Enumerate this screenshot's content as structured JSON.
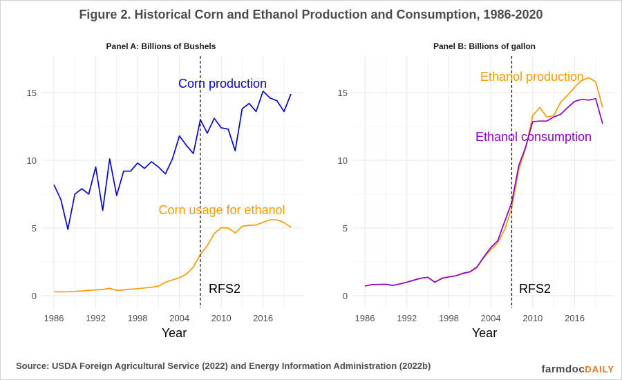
{
  "figure": {
    "title": "Figure 2. Historical Corn and Ethanol Production and Consumption, 1986-2020",
    "source": "Source: USDA Foreign Agricultural Service (2022) and Energy Information Administration (2022b)",
    "brand_main": "farmdoc",
    "brand_accent": "DAILY"
  },
  "colors": {
    "blue": "#0000e0",
    "orange": "#ff9900",
    "purple": "#8a00d4",
    "grid": "#ebebeb",
    "text": "#4d4d4d"
  },
  "chart_data": [
    {
      "type": "line",
      "title": "Panel A: Billions of Bushels",
      "xlabel": "Year",
      "ylabel": "",
      "xlim": [
        1986,
        2020
      ],
      "ylim": [
        0,
        17.5
      ],
      "x_ticks": [
        1986,
        1992,
        1998,
        2004,
        2010,
        2016
      ],
      "y_ticks": [
        0,
        5,
        10,
        15
      ],
      "grid": true,
      "vline": {
        "x": 2007,
        "label": "RFS2"
      },
      "series": [
        {
          "name": "Corn production",
          "color": "#0000e0",
          "x": [
            1986,
            1987,
            1988,
            1989,
            1990,
            1991,
            1992,
            1993,
            1994,
            1995,
            1996,
            1997,
            1998,
            1999,
            2000,
            2001,
            2002,
            2003,
            2004,
            2005,
            2006,
            2007,
            2008,
            2009,
            2010,
            2011,
            2012,
            2013,
            2014,
            2015,
            2016,
            2017,
            2018,
            2019,
            2020
          ],
          "y": [
            8.2,
            7.1,
            4.9,
            7.5,
            7.9,
            7.5,
            9.5,
            6.3,
            10.1,
            7.4,
            9.2,
            9.2,
            9.8,
            9.4,
            9.9,
            9.5,
            9.0,
            10.1,
            11.8,
            11.1,
            10.5,
            13.0,
            12.0,
            13.1,
            12.4,
            12.3,
            10.7,
            13.8,
            14.2,
            13.6,
            15.1,
            14.6,
            14.4,
            13.6,
            14.9
          ]
        },
        {
          "name": "Corn usage for ethanol",
          "color": "#ff9900",
          "x": [
            1986,
            1987,
            1988,
            1989,
            1990,
            1991,
            1992,
            1993,
            1994,
            1995,
            1996,
            1997,
            1998,
            1999,
            2000,
            2001,
            2002,
            2003,
            2004,
            2005,
            2006,
            2007,
            2008,
            2009,
            2010,
            2011,
            2012,
            2013,
            2014,
            2015,
            2016,
            2017,
            2018,
            2019,
            2020
          ],
          "y": [
            0.29,
            0.28,
            0.29,
            0.32,
            0.35,
            0.4,
            0.43,
            0.46,
            0.55,
            0.4,
            0.43,
            0.48,
            0.52,
            0.57,
            0.63,
            0.71,
            1.0,
            1.17,
            1.32,
            1.6,
            2.12,
            3.05,
            3.7,
            4.59,
            5.02,
            5.0,
            4.64,
            5.12,
            5.2,
            5.22,
            5.43,
            5.6,
            5.6,
            5.4,
            5.05
          ]
        }
      ]
    },
    {
      "type": "line",
      "title": "Panel B: Billions of gallon",
      "xlabel": "Year",
      "ylabel": "",
      "xlim": [
        1986,
        2020
      ],
      "ylim": [
        0,
        17.5
      ],
      "x_ticks": [
        1986,
        1992,
        1998,
        2004,
        2010,
        2016
      ],
      "y_ticks": [
        0,
        5,
        10,
        15
      ],
      "grid": true,
      "vline": {
        "x": 2007,
        "label": "RFS2"
      },
      "series": [
        {
          "name": "Ethanol production",
          "color": "#ff9900",
          "x": [
            1986,
            1987,
            1988,
            1989,
            1990,
            1991,
            1992,
            1993,
            1994,
            1995,
            1996,
            1997,
            1998,
            1999,
            2000,
            2001,
            2002,
            2003,
            2004,
            2005,
            2006,
            2007,
            2008,
            2009,
            2010,
            2011,
            2012,
            2013,
            2014,
            2015,
            2016,
            2017,
            2018,
            2019,
            2020
          ],
          "y": [
            0.71,
            0.82,
            0.83,
            0.84,
            0.75,
            0.87,
            1.0,
            1.15,
            1.29,
            1.35,
            0.98,
            1.3,
            1.4,
            1.47,
            1.62,
            1.77,
            2.14,
            2.8,
            3.4,
            3.9,
            4.9,
            6.5,
            9.3,
            10.9,
            13.3,
            13.9,
            13.2,
            13.3,
            14.3,
            14.8,
            15.4,
            15.9,
            16.1,
            15.8,
            13.9
          ]
        },
        {
          "name": "Ethanol consumption",
          "color": "#8a00d4",
          "x": [
            1986,
            1987,
            1988,
            1989,
            1990,
            1991,
            1992,
            1993,
            1994,
            1995,
            1996,
            1997,
            1998,
            1999,
            2000,
            2001,
            2002,
            2003,
            2004,
            2005,
            2006,
            2007,
            2008,
            2009,
            2010,
            2011,
            2012,
            2013,
            2014,
            2015,
            2016,
            2017,
            2018,
            2019,
            2020
          ],
          "y": [
            0.72,
            0.82,
            0.83,
            0.84,
            0.76,
            0.87,
            1.0,
            1.15,
            1.29,
            1.36,
            1.0,
            1.27,
            1.39,
            1.47,
            1.66,
            1.76,
            2.08,
            2.86,
            3.55,
            4.06,
            5.5,
            6.9,
            9.6,
            11.0,
            12.85,
            12.9,
            12.9,
            13.2,
            13.4,
            13.9,
            14.35,
            14.5,
            14.45,
            14.55,
            12.7
          ]
        }
      ]
    }
  ],
  "annotations": [
    {
      "panel": 0,
      "text": "Corn production",
      "color": "#0000e0"
    },
    {
      "panel": 0,
      "text": "Corn usage for ethanol",
      "color": "#ff9900"
    },
    {
      "panel": 1,
      "text": "Ethanol production",
      "color": "#ff9900"
    },
    {
      "panel": 1,
      "text": "Ethanol consumption",
      "color": "#8a00d4"
    }
  ]
}
